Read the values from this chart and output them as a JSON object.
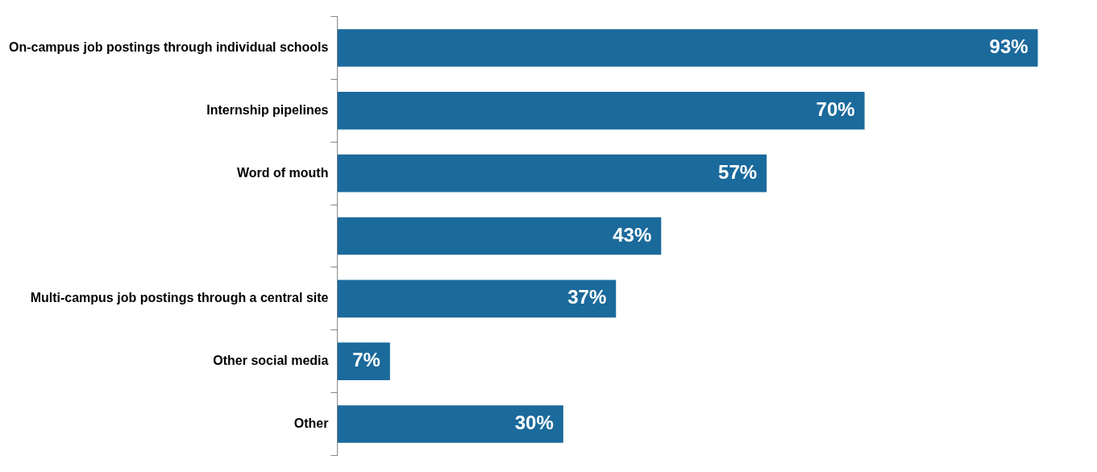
{
  "chart_data": {
    "type": "bar",
    "orientation": "horizontal",
    "categories": [
      "On-campus job postings through individual schools",
      "Internship pipelines",
      "Word of mouth",
      null,
      "Multi-campus job postings through a central site",
      "Other social media",
      "Other"
    ],
    "values": [
      93,
      70,
      57,
      43,
      37,
      7,
      30
    ],
    "value_labels": [
      "93%",
      "70%",
      "57%",
      "43%",
      "37%",
      "7%",
      "30%"
    ],
    "color": "#1b6a9c",
    "grid": false,
    "legend": false,
    "tick_labels": "y"
  }
}
